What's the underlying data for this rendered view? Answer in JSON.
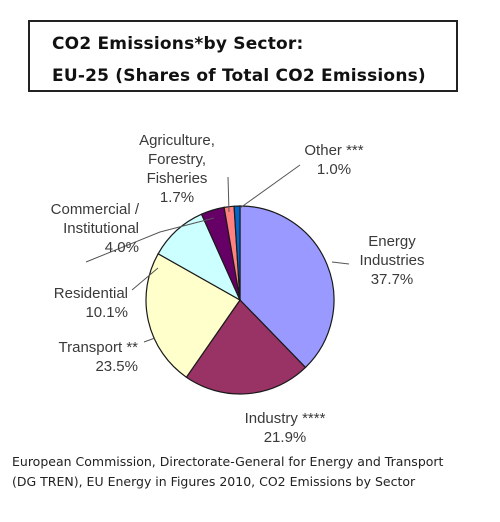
{
  "title": {
    "line1": "CO2 Emissions*by Sector:",
    "line2": "EU-25 (Shares of Total CO2 Emissions)"
  },
  "source": {
    "line1": "European Commission, Directorate-General for Energy and Transport",
    "line2": "(DG TREN), EU Energy in Figures 2010, CO2 Emissions by Sector"
  },
  "chart_data": {
    "type": "pie",
    "title": "CO2 Emissions*by Sector: EU-25 (Shares of Total CO2 Emissions)",
    "legend": "none",
    "slices": [
      {
        "name": "Energy Industries",
        "value": 37.7,
        "label_lines": [
          "Energy",
          "Industries"
        ],
        "value_label": "37.7%",
        "color": "#9999ff"
      },
      {
        "name": "Industry ****",
        "value": 21.9,
        "label_lines": [
          "Industry ****"
        ],
        "value_label": "21.9%",
        "color": "#993366"
      },
      {
        "name": "Transport **",
        "value": 23.5,
        "label_lines": [
          "Transport **"
        ],
        "value_label": "23.5%",
        "color": "#ffffcc"
      },
      {
        "name": "Residential",
        "value": 10.1,
        "label_lines": [
          "Residential"
        ],
        "value_label": "10.1%",
        "color": "#ccffff"
      },
      {
        "name": "Commercial / Institutional",
        "value": 4.0,
        "label_lines": [
          "Commercial /",
          "Institutional"
        ],
        "value_label": "4.0%",
        "color": "#660066"
      },
      {
        "name": "Agriculture, Forestry, Fisheries",
        "value": 1.7,
        "label_lines": [
          "Agriculture,",
          "Forestry,",
          "Fisheries"
        ],
        "value_label": "1.7%",
        "color": "#ff8080"
      },
      {
        "name": "Other ***",
        "value": 1.0,
        "label_lines": [
          "Other ***"
        ],
        "value_label": "1.0%",
        "color": "#0066cc"
      }
    ]
  }
}
